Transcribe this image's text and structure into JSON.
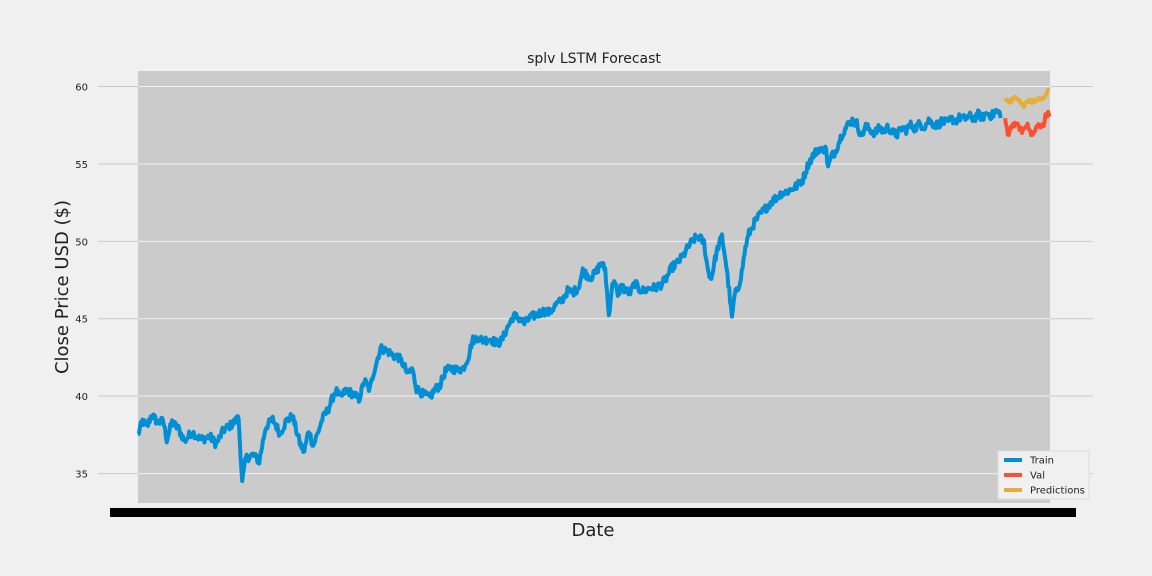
{
  "chart_data": {
    "type": "line",
    "title": "splv LSTM Forecast",
    "xlabel": "Date",
    "ylabel": "Close Price USD ($)",
    "ylim": [
      33.1,
      61.0
    ],
    "yticks": [
      35,
      40,
      45,
      50,
      55,
      60
    ],
    "grid": true,
    "legend_position": "lower-right",
    "x_count": 1015,
    "series": [
      {
        "name": "Train",
        "color": "#008fd5",
        "x_range": [
          0,
          960
        ],
        "keypoints": [
          [
            0,
            37.5
          ],
          [
            5,
            38.4
          ],
          [
            10,
            38.0
          ],
          [
            15,
            38.8
          ],
          [
            22,
            38.3
          ],
          [
            28,
            38.4
          ],
          [
            32,
            37.2
          ],
          [
            38,
            38.3
          ],
          [
            45,
            37.9
          ],
          [
            52,
            37.1
          ],
          [
            60,
            37.7
          ],
          [
            70,
            37.2
          ],
          [
            80,
            37.4
          ],
          [
            87,
            36.9
          ],
          [
            95,
            37.8
          ],
          [
            105,
            38.2
          ],
          [
            112,
            38.6
          ],
          [
            116,
            34.4
          ],
          [
            120,
            36.0
          ],
          [
            128,
            36.2
          ],
          [
            135,
            35.8
          ],
          [
            142,
            38.0
          ],
          [
            150,
            38.5
          ],
          [
            158,
            37.6
          ],
          [
            165,
            38.4
          ],
          [
            172,
            38.7
          ],
          [
            180,
            37.0
          ],
          [
            185,
            36.4
          ],
          [
            190,
            37.8
          ],
          [
            195,
            36.8
          ],
          [
            200,
            37.6
          ],
          [
            205,
            38.5
          ],
          [
            212,
            39.2
          ],
          [
            220,
            40.4
          ],
          [
            225,
            39.9
          ],
          [
            232,
            40.4
          ],
          [
            240,
            40.1
          ],
          [
            246,
            39.8
          ],
          [
            252,
            41.0
          ],
          [
            258,
            40.4
          ],
          [
            262,
            41.5
          ],
          [
            270,
            43.1
          ],
          [
            278,
            42.9
          ],
          [
            285,
            42.6
          ],
          [
            290,
            42.5
          ],
          [
            296,
            42.0
          ],
          [
            300,
            41.4
          ],
          [
            305,
            41.8
          ],
          [
            310,
            40.5
          ],
          [
            318,
            40.1
          ],
          [
            325,
            39.9
          ],
          [
            330,
            40.4
          ],
          [
            336,
            40.7
          ],
          [
            342,
            41.6
          ],
          [
            348,
            41.8
          ],
          [
            355,
            41.7
          ],
          [
            362,
            41.8
          ],
          [
            368,
            42.6
          ],
          [
            372,
            43.6
          ],
          [
            378,
            43.8
          ],
          [
            384,
            43.6
          ],
          [
            392,
            43.7
          ],
          [
            400,
            43.4
          ],
          [
            405,
            43.6
          ],
          [
            410,
            44.3
          ],
          [
            418,
            45.2
          ],
          [
            425,
            45.0
          ],
          [
            430,
            44.7
          ],
          [
            437,
            45.1
          ],
          [
            445,
            45.3
          ],
          [
            452,
            45.5
          ],
          [
            458,
            45.4
          ],
          [
            465,
            45.9
          ],
          [
            472,
            46.2
          ],
          [
            478,
            46.8
          ],
          [
            484,
            46.7
          ],
          [
            490,
            47.0
          ],
          [
            495,
            48.1
          ],
          [
            500,
            47.8
          ],
          [
            505,
            47.7
          ],
          [
            510,
            48.0
          ],
          [
            515,
            48.6
          ],
          [
            520,
            48.2
          ],
          [
            524,
            45.2
          ],
          [
            527,
            46.8
          ],
          [
            530,
            47.6
          ],
          [
            534,
            46.4
          ],
          [
            538,
            47.2
          ],
          [
            542,
            46.8
          ],
          [
            548,
            46.7
          ],
          [
            553,
            47.3
          ],
          [
            558,
            46.9
          ],
          [
            563,
            46.8
          ],
          [
            570,
            47.0
          ],
          [
            576,
            47.0
          ],
          [
            582,
            47.2
          ],
          [
            588,
            47.6
          ],
          [
            594,
            48.3
          ],
          [
            600,
            48.6
          ],
          [
            606,
            49.0
          ],
          [
            612,
            49.6
          ],
          [
            618,
            50.1
          ],
          [
            624,
            50.3
          ],
          [
            630,
            49.9
          ],
          [
            634,
            48.2
          ],
          [
            638,
            47.6
          ],
          [
            642,
            48.8
          ],
          [
            646,
            49.7
          ],
          [
            650,
            50.3
          ],
          [
            654,
            48.8
          ],
          [
            658,
            46.8
          ],
          [
            661,
            45.0
          ],
          [
            664,
            46.5
          ],
          [
            668,
            47.0
          ],
          [
            672,
            48.0
          ],
          [
            676,
            49.6
          ],
          [
            680,
            50.5
          ],
          [
            686,
            51.2
          ],
          [
            692,
            51.7
          ],
          [
            698,
            52.1
          ],
          [
            704,
            52.5
          ],
          [
            710,
            52.8
          ],
          [
            716,
            53.1
          ],
          [
            722,
            53.2
          ],
          [
            728,
            53.4
          ],
          [
            734,
            53.6
          ],
          [
            740,
            54.0
          ],
          [
            746,
            55.0
          ],
          [
            752,
            55.6
          ],
          [
            758,
            56.0
          ],
          [
            762,
            55.8
          ],
          [
            765,
            56.2
          ],
          [
            768,
            54.8
          ],
          [
            772,
            55.5
          ],
          [
            776,
            55.8
          ],
          [
            780,
            56.4
          ],
          [
            784,
            57.0
          ],
          [
            790,
            57.5
          ],
          [
            795,
            57.8
          ],
          [
            800,
            57.6
          ],
          [
            805,
            56.8
          ],
          [
            810,
            57.4
          ],
          [
            815,
            57.2
          ],
          [
            820,
            57.0
          ],
          [
            825,
            57.3
          ],
          [
            830,
            57.1
          ],
          [
            835,
            57.4
          ],
          [
            840,
            57.0
          ],
          [
            845,
            56.9
          ],
          [
            850,
            57.3
          ],
          [
            855,
            57.2
          ],
          [
            860,
            57.5
          ],
          [
            865,
            57.3
          ],
          [
            870,
            57.6
          ],
          [
            875,
            57.4
          ],
          [
            880,
            57.8
          ],
          [
            885,
            57.6
          ],
          [
            890,
            57.5
          ],
          [
            895,
            57.8
          ],
          [
            900,
            57.6
          ],
          [
            905,
            57.9
          ],
          [
            910,
            57.8
          ],
          [
            915,
            58.0
          ],
          [
            920,
            57.9
          ],
          [
            925,
            58.1
          ],
          [
            930,
            57.9
          ],
          [
            935,
            58.2
          ],
          [
            940,
            58.0
          ],
          [
            945,
            58.3
          ],
          [
            950,
            58.1
          ],
          [
            955,
            58.4
          ],
          [
            960,
            58.2
          ]
        ]
      }
    ]
  }
}
